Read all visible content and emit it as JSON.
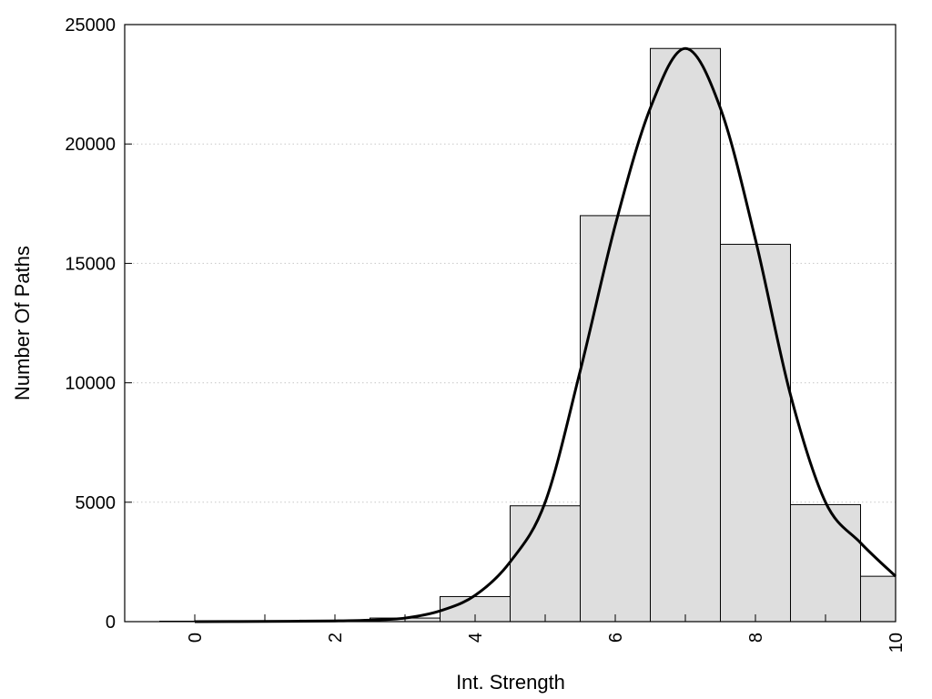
{
  "chart_data": {
    "type": "bar",
    "title": "",
    "xlabel": "Int. Strength",
    "ylabel": "Number Of Paths",
    "xlim": [
      -1,
      10
    ],
    "ylim": [
      0,
      25000
    ],
    "x_ticks": [
      0,
      2,
      4,
      6,
      8,
      10
    ],
    "x_tick_labels": [
      "0",
      "2",
      "4",
      "6",
      "8",
      "10"
    ],
    "y_ticks": [
      0,
      5000,
      10000,
      15000,
      20000,
      25000
    ],
    "y_tick_labels": [
      "0",
      "5000",
      "10000",
      "15000",
      "20000",
      "25000"
    ],
    "grid": "horizontal-dotted",
    "bar_width": 1,
    "bar_color": "#dedede",
    "series": [
      {
        "x": [
          0,
          1,
          2,
          3,
          4,
          5,
          6,
          7,
          8,
          9,
          10
        ],
        "values": [
          20,
          30,
          60,
          150,
          1050,
          4850,
          17000,
          24000,
          15800,
          4900,
          1900
        ]
      },
      {
        "type": "line",
        "x": [
          0,
          1,
          2,
          2.5,
          3,
          3.5,
          4,
          4.5,
          5,
          5.5,
          6,
          6.5,
          7,
          7.5,
          8,
          8.5,
          9,
          9.5,
          10
        ],
        "values": [
          0,
          10,
          30,
          60,
          150,
          450,
          1100,
          2500,
          5000,
          10500,
          16600,
          21500,
          24000,
          21500,
          16000,
          9500,
          5000,
          3300,
          1900
        ]
      }
    ]
  }
}
